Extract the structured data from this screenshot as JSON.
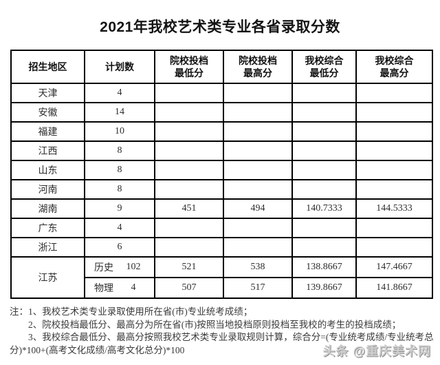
{
  "title": "2021年我校艺术类专业各省录取分数",
  "table": {
    "headers": [
      [
        "招生地区"
      ],
      [
        "计划数"
      ],
      [
        "院校投档",
        "最低分"
      ],
      [
        "院校投档",
        "最高分"
      ],
      [
        "我校综合",
        "最低分"
      ],
      [
        "我校综合",
        "最高分"
      ]
    ],
    "province_rows": [
      {
        "region": "天津",
        "plan": "4",
        "file_min": "",
        "file_max": "",
        "comp_min": "",
        "comp_max": ""
      },
      {
        "region": "安徽",
        "plan": "14",
        "file_min": "",
        "file_max": "",
        "comp_min": "",
        "comp_max": ""
      },
      {
        "region": "福建",
        "plan": "10",
        "file_min": "",
        "file_max": "",
        "comp_min": "",
        "comp_max": ""
      },
      {
        "region": "江西",
        "plan": "8",
        "file_min": "",
        "file_max": "",
        "comp_min": "",
        "comp_max": ""
      },
      {
        "region": "山东",
        "plan": "8",
        "file_min": "",
        "file_max": "",
        "comp_min": "",
        "comp_max": ""
      },
      {
        "region": "河南",
        "plan": "8",
        "file_min": "",
        "file_max": "",
        "comp_min": "",
        "comp_max": ""
      },
      {
        "region": "湖南",
        "plan": "9",
        "file_min": "451",
        "file_max": "494",
        "comp_min": "140.7333",
        "comp_max": "144.5333"
      },
      {
        "region": "广东",
        "plan": "4",
        "file_min": "",
        "file_max": "",
        "comp_min": "",
        "comp_max": ""
      },
      {
        "region": "浙江",
        "plan": "6",
        "file_min": "",
        "file_max": "",
        "comp_min": "",
        "comp_max": ""
      }
    ],
    "merged_row": {
      "region": "江苏",
      "sub_rows": [
        {
          "track": "历史",
          "plan": "102",
          "file_min": "521",
          "file_max": "538",
          "comp_min": "138.8667",
          "comp_max": "147.4667"
        },
        {
          "track": "物理",
          "plan": "4",
          "file_min": "507",
          "file_max": "517",
          "comp_min": "139.8667",
          "comp_max": "141.8667"
        }
      ]
    }
  },
  "notes": [
    "注：1、我校艺术类专业录取使用所在省(市)专业统考成绩；",
    "2、院校投档最低分、最高分为所在省(市)按照当地投档原则投档至我校的考生的投档成绩；",
    "3、我校综合最低分、最高分按照我校艺术类专业录取规则计算，综合分=(专业统考成绩/专业统考总",
    "分)*100+(高考文化成绩/高考文化总分)*100"
  ],
  "watermark": "头条 @重庆美术网",
  "colors": {
    "border": "#000000",
    "body_text": "#2e2e2e",
    "watermark_gray": "#cfcfcf"
  }
}
